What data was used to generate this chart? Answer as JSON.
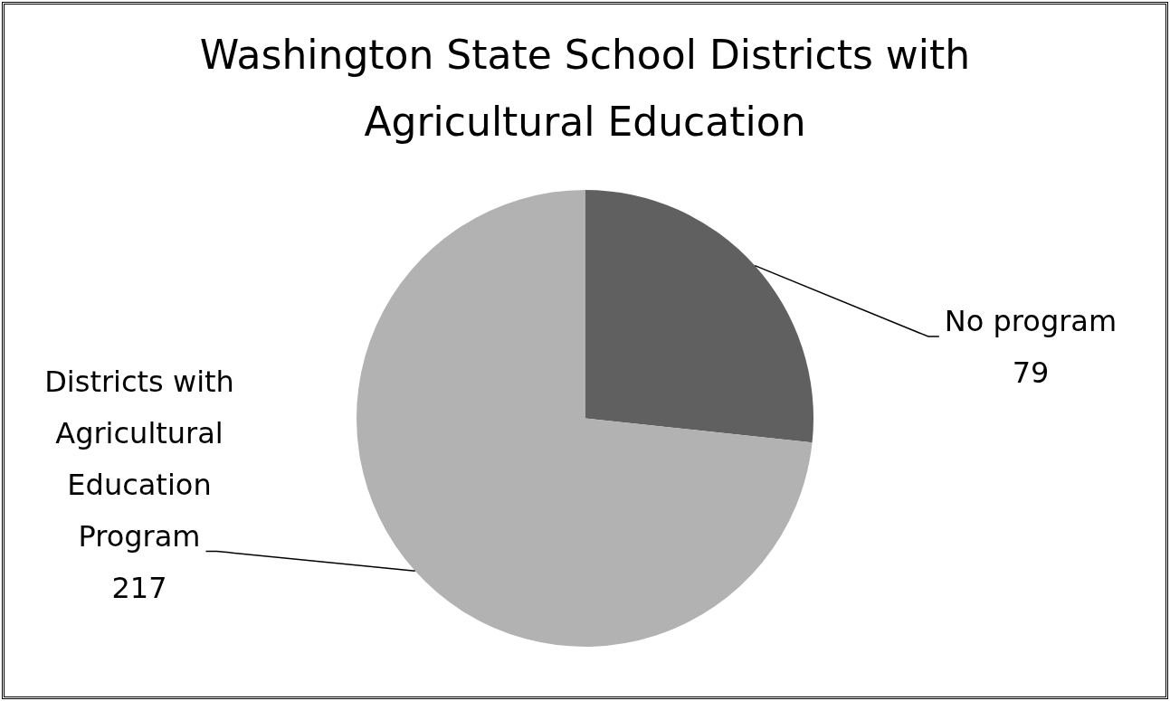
{
  "chart_data": {
    "type": "pie",
    "title": "Washington State School Districts with Agricultural Education",
    "categories": [
      "No program",
      "Districts with Agricultural Education Program"
    ],
    "values": [
      79,
      217
    ],
    "colors": [
      "#606060",
      "#b2b2b2"
    ],
    "data_labels": true,
    "legend": false
  }
}
